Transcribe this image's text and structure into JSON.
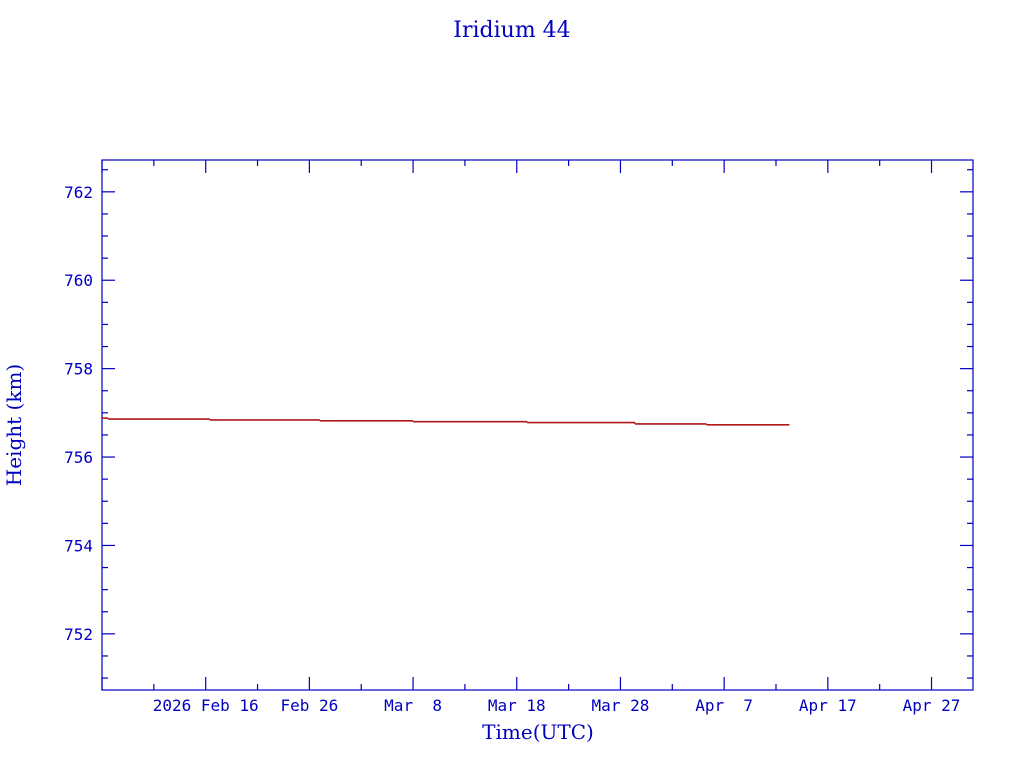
{
  "chart_data": {
    "type": "line",
    "title": "Iridium 44",
    "xlabel": "Time(UTC)",
    "ylabel": "Height (km)",
    "xlim": [
      "2026-02-06",
      "2026-05-01"
    ],
    "ylim": [
      750.73,
      762.72
    ],
    "x_tick_labels": [
      "2026 Feb 16",
      "Feb 26",
      "Mar  8",
      "Mar 18",
      "Mar 28",
      "Apr  7",
      "Apr 17",
      "Apr 27"
    ],
    "x_tick_dates": [
      "2026-02-16",
      "2026-02-26",
      "2026-03-08",
      "2026-03-18",
      "2026-03-28",
      "2026-04-07",
      "2026-04-17",
      "2026-04-27"
    ],
    "y_ticks": [
      752,
      754,
      756,
      758,
      760,
      762
    ],
    "grid": false,
    "line_style": "step",
    "colors": {
      "axes": "#0000c0",
      "series": "#b01818"
    },
    "series": [
      {
        "x": [
          "2026-02-06",
          "2026-02-06.6",
          "2026-02-16.4",
          "2026-02-27",
          "2026-03-08",
          "2026-03-19",
          "2026-03-29.4",
          "2026-04-05.3",
          "2026-04-13.3"
        ],
        "y": [
          756.88,
          756.86,
          756.84,
          756.82,
          756.8,
          756.78,
          756.75,
          756.73,
          756.73
        ]
      }
    ]
  }
}
